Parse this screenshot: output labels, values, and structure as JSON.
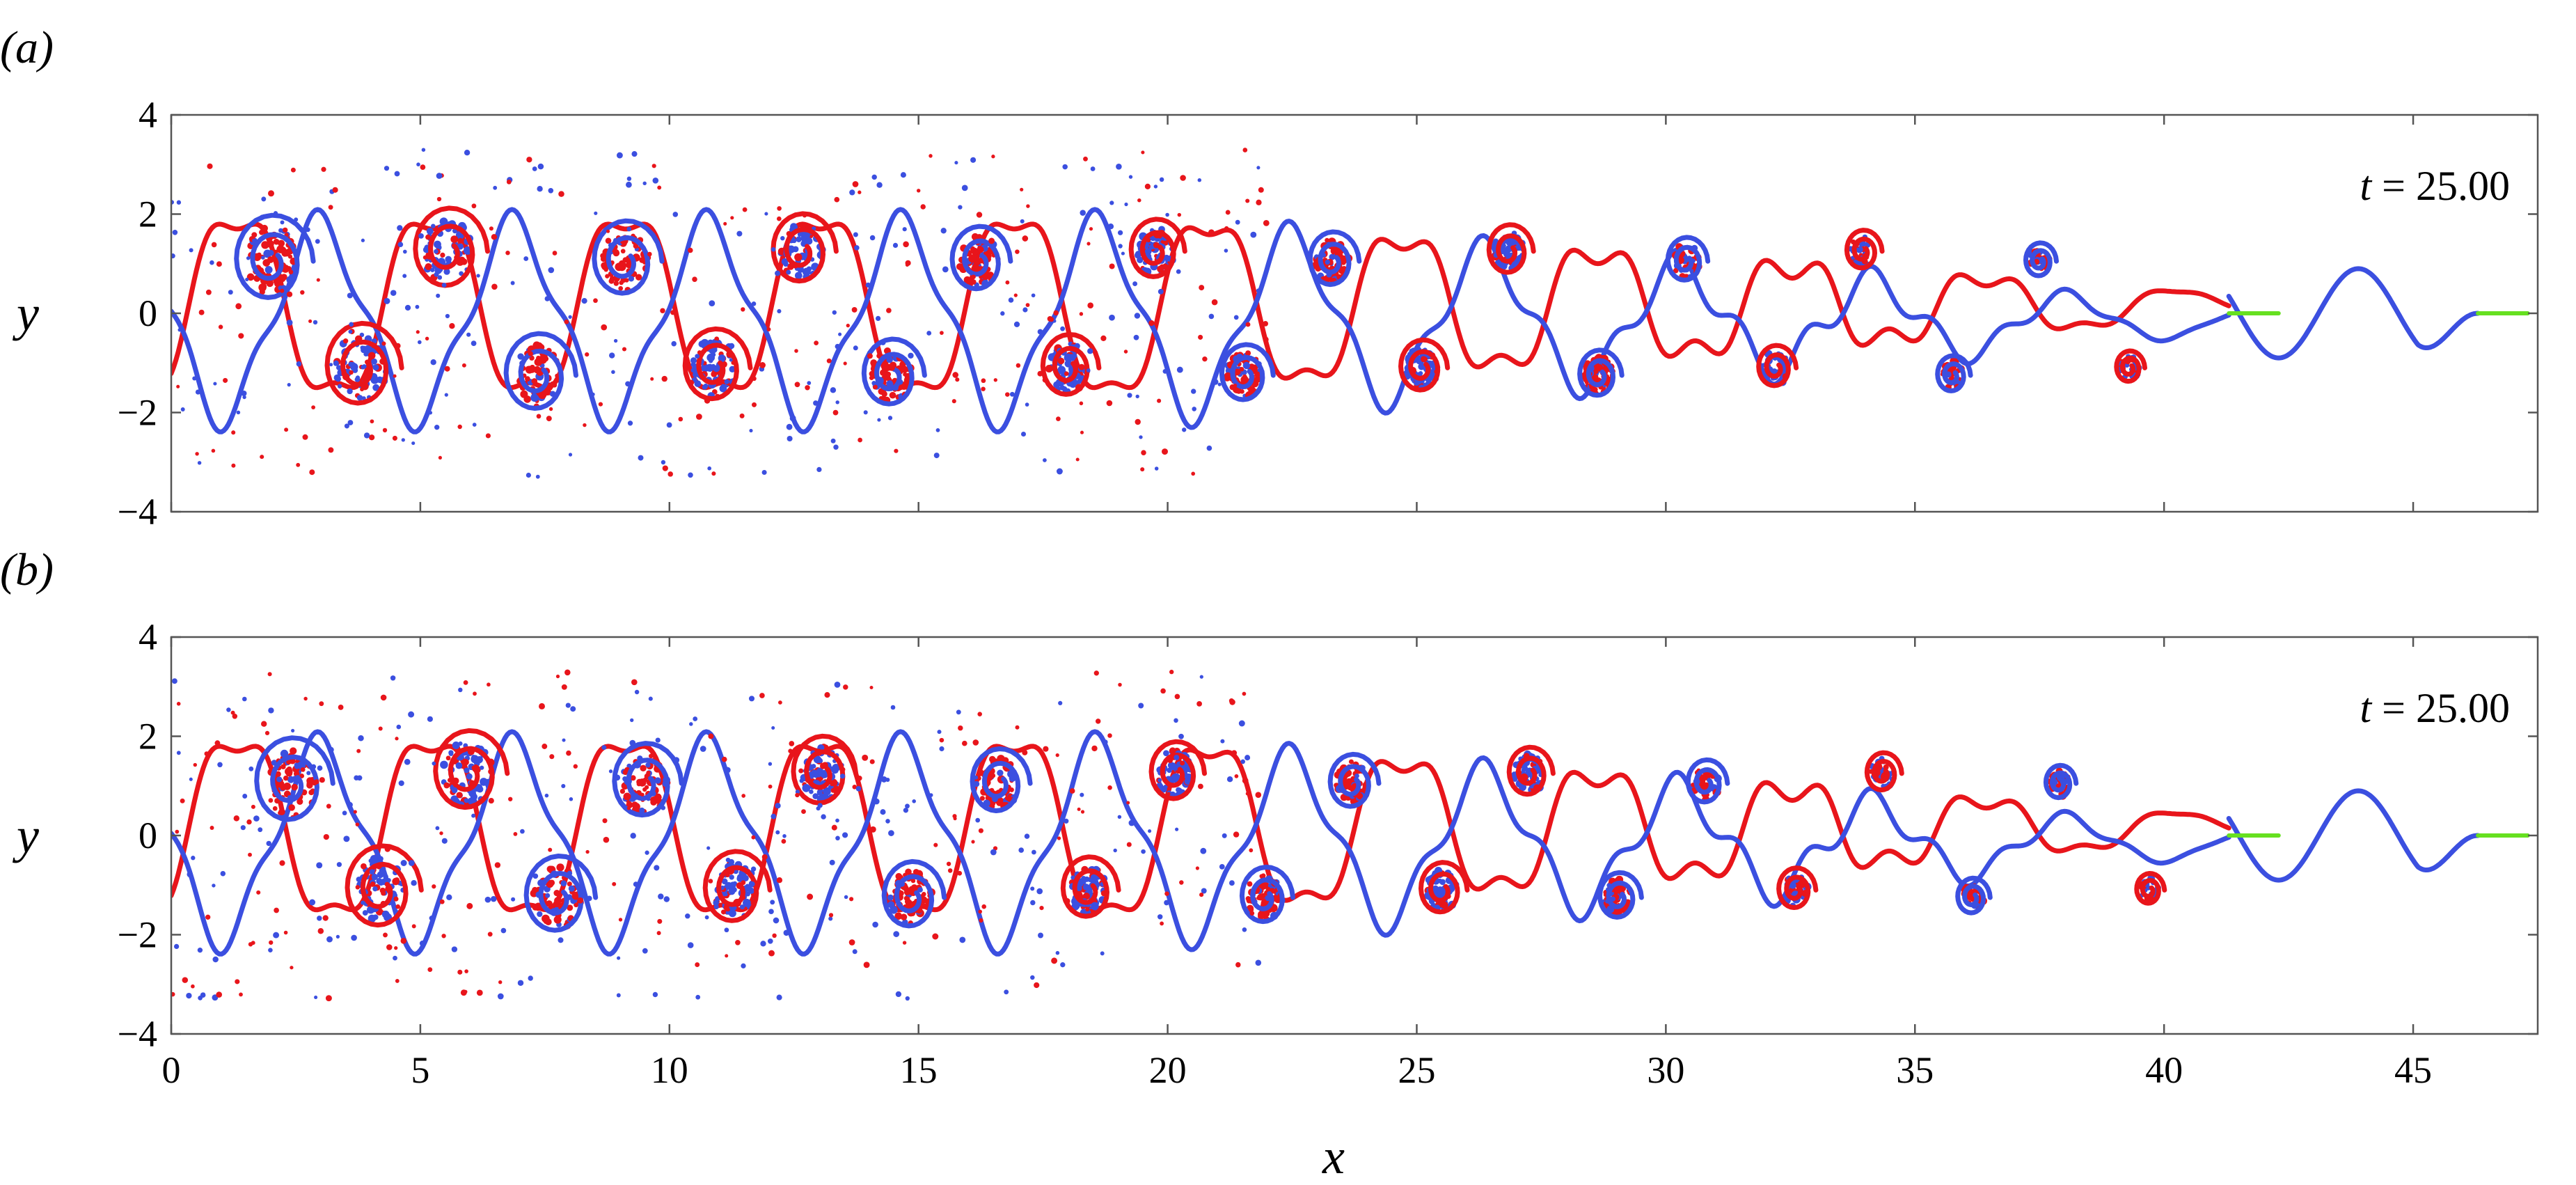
{
  "chart_data": [
    {
      "type": "scatter",
      "panel_label": "(a)",
      "annotation": {
        "pre": "t",
        "post": " = 25.00"
      },
      "xlabel": "",
      "ylabel": "y",
      "xlim": [
        0,
        47.5
      ],
      "ylim": [
        -4,
        4
      ],
      "x_ticks": [
        0,
        5,
        10,
        15,
        20,
        25,
        30,
        35,
        40,
        45
      ],
      "y_ticks": [
        4,
        2,
        0,
        -2,
        -4
      ],
      "y_tick_labels": [
        "4",
        "2",
        "0",
        "−2",
        "−4"
      ],
      "show_x_tick_labels": false,
      "grid": false,
      "sources": [
        [
          41.3,
          0
        ],
        [
          46.3,
          0
        ]
      ],
      "source_length": 1.0,
      "colors": {
        "red_streak": "#e8151b",
        "blue_streak": "#3b4fe0",
        "source": "#66e020"
      }
    },
    {
      "type": "scatter",
      "panel_label": "(b)",
      "annotation": {
        "pre": "t",
        "post": " = 25.00"
      },
      "xlabel": "x",
      "ylabel": "y",
      "xlim": [
        0,
        47.5
      ],
      "ylim": [
        -4,
        4
      ],
      "x_ticks": [
        0,
        5,
        10,
        15,
        20,
        25,
        30,
        35,
        40,
        45
      ],
      "x_tick_labels": [
        "0",
        "5",
        "10",
        "15",
        "20",
        "25",
        "30",
        "35",
        "40",
        "45"
      ],
      "y_ticks": [
        4,
        2,
        0,
        -2,
        -4
      ],
      "y_tick_labels": [
        "4",
        "2",
        "0",
        "−2",
        "−4"
      ],
      "show_x_tick_labels": true,
      "grid": false,
      "sources": [
        [
          41.3,
          0
        ],
        [
          46.3,
          0
        ]
      ],
      "source_length": 1.0,
      "colors": {
        "red_streak": "#e8151b",
        "blue_streak": "#3b4fe0",
        "source": "#66e020"
      }
    }
  ]
}
